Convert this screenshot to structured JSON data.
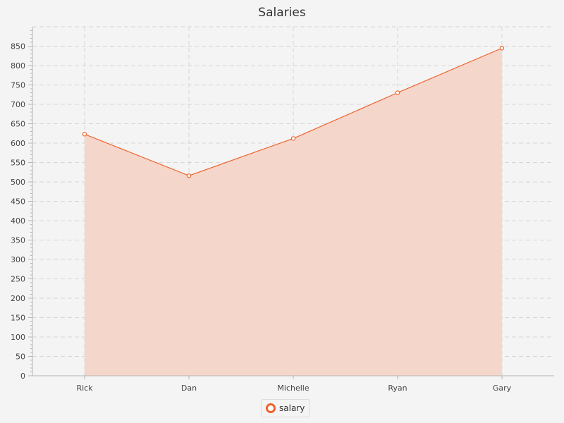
{
  "chart_data": {
    "type": "area",
    "title": "Salaries",
    "xlabel": "",
    "ylabel": "",
    "categories": [
      "Rick",
      "Dan",
      "Michelle",
      "Ryan",
      "Gary"
    ],
    "series": [
      {
        "name": "salary",
        "values": [
          623,
          516,
          612,
          730,
          845
        ],
        "color": "#f0622c",
        "fill": "#f5d6cb"
      }
    ],
    "ylim": [
      0,
      900
    ],
    "y_major_step": 50,
    "y_minor_step": 10,
    "grid": true,
    "legend": "bottom-center"
  }
}
